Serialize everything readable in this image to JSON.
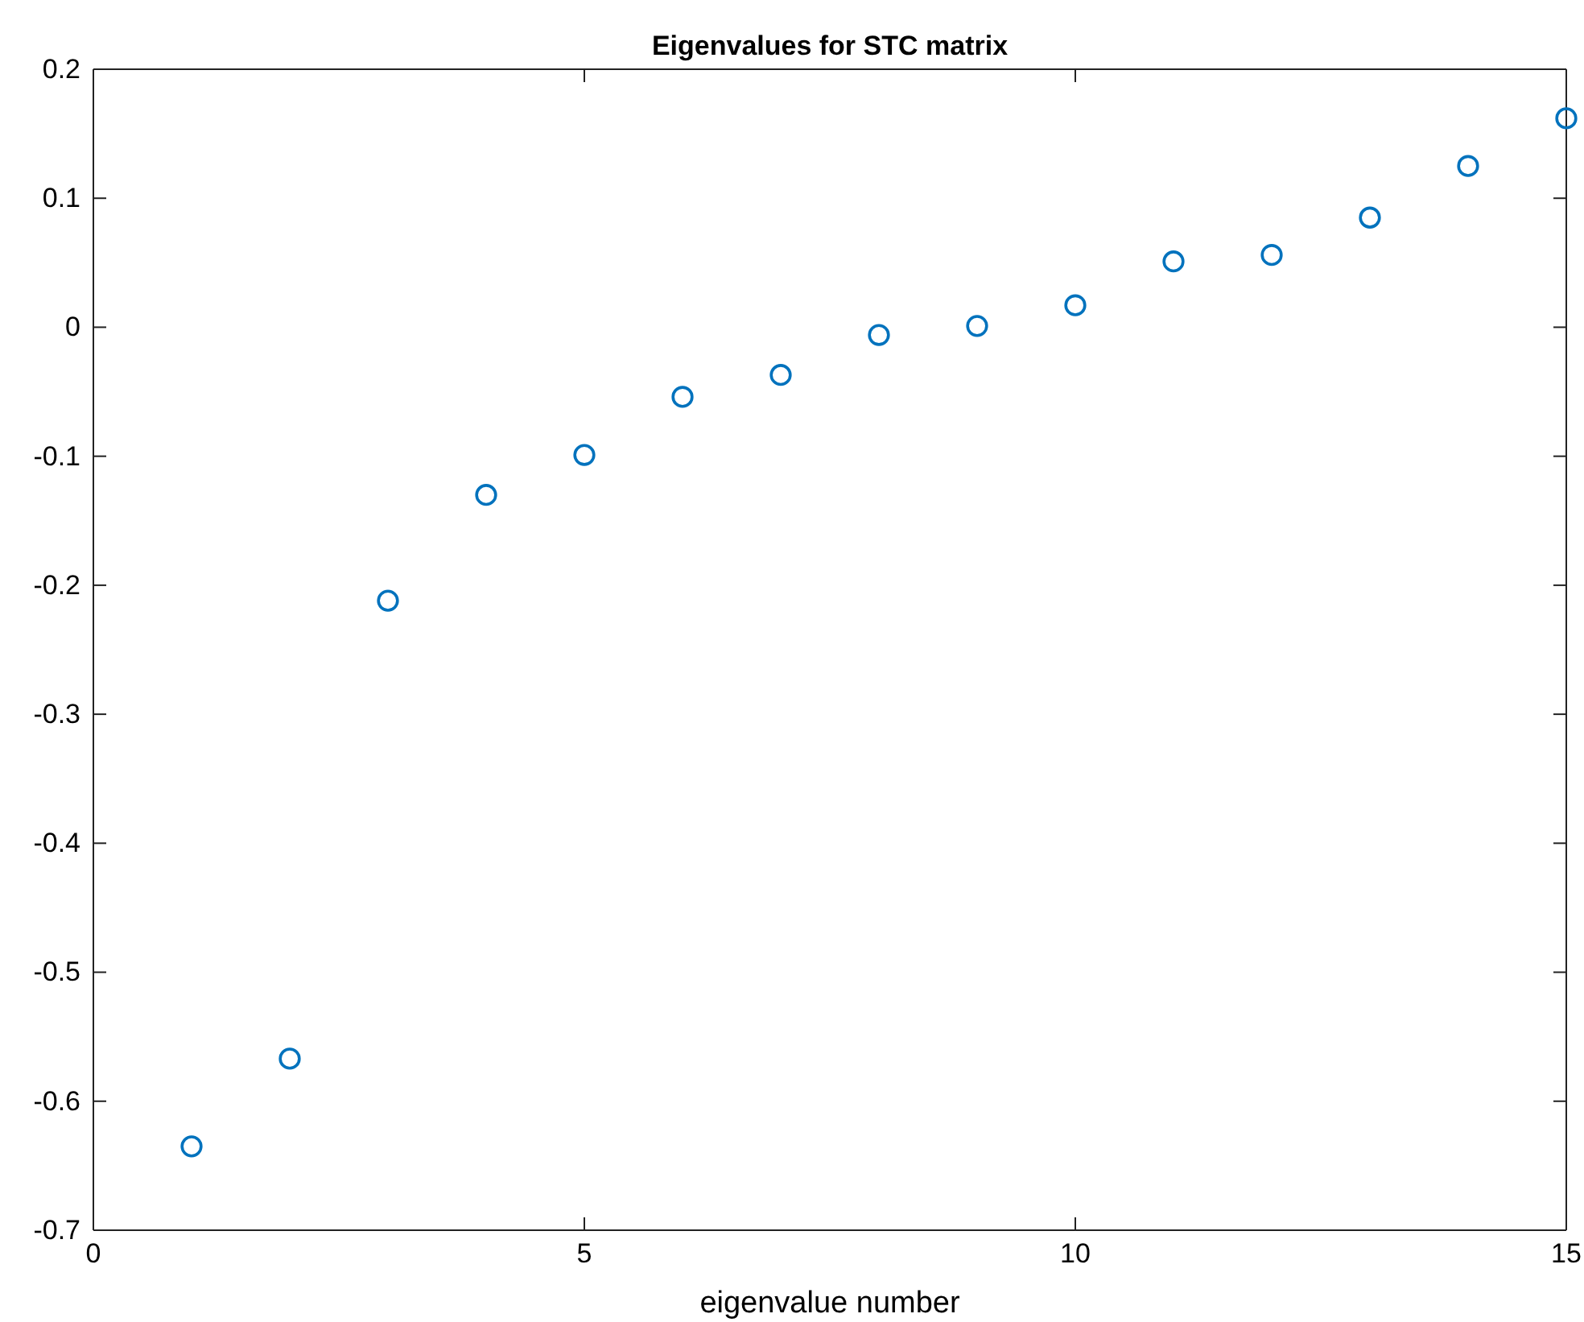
{
  "chart_data": {
    "type": "scatter",
    "title": "Eigenvalues for STC matrix",
    "xlabel": "eigenvalue number",
    "x": [
      1,
      2,
      3,
      4,
      5,
      6,
      7,
      8,
      9,
      10,
      11,
      12,
      13,
      14,
      15
    ],
    "series": [
      {
        "color": "#0072bd",
        "values": [
          -0.635,
          -0.567,
          -0.212,
          -0.13,
          -0.099,
          -0.054,
          -0.037,
          -0.006,
          0.001,
          0.017,
          0.051,
          0.056,
          0.085,
          0.125,
          0.162
        ]
      }
    ],
    "xlim": [
      0,
      15
    ],
    "xticks": [
      0,
      5,
      10,
      15
    ],
    "ylim": [
      -0.7,
      0.2
    ],
    "yticks": [
      -0.7,
      -0.6,
      -0.5,
      -0.4,
      -0.3,
      -0.2,
      -0.1,
      0,
      0.1,
      0.2
    ],
    "marker": "circle"
  }
}
